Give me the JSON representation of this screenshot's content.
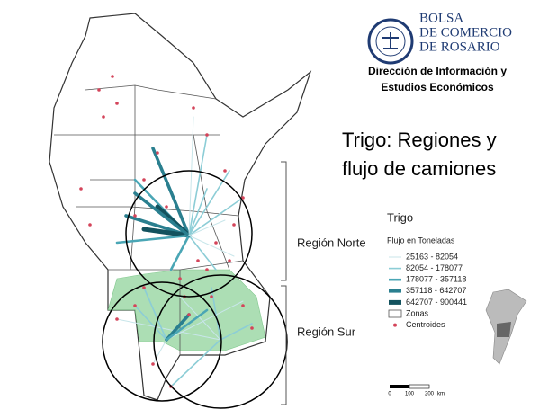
{
  "header": {
    "org_name": [
      "BOLSA",
      "DE COMERCIO",
      "DE ROSARIO"
    ],
    "department": [
      "Dirección de Información y",
      "Estudios Económicos"
    ]
  },
  "title": [
    "Trigo: Regiones y",
    "flujo de camiones"
  ],
  "regions": [
    "Región Norte",
    "Región Sur"
  ],
  "legend": {
    "title": "Trigo",
    "subtitle": "Flujo en Toneladas",
    "items": [
      "25163 - 82054",
      "82054 - 178077",
      "178077 - 357118",
      "357118 - 642707",
      "642707 - 900441",
      "Zonas",
      "Centroides"
    ]
  },
  "scale_bar": {
    "labels": [
      "0",
      "100",
      "200",
      "km"
    ]
  }
}
